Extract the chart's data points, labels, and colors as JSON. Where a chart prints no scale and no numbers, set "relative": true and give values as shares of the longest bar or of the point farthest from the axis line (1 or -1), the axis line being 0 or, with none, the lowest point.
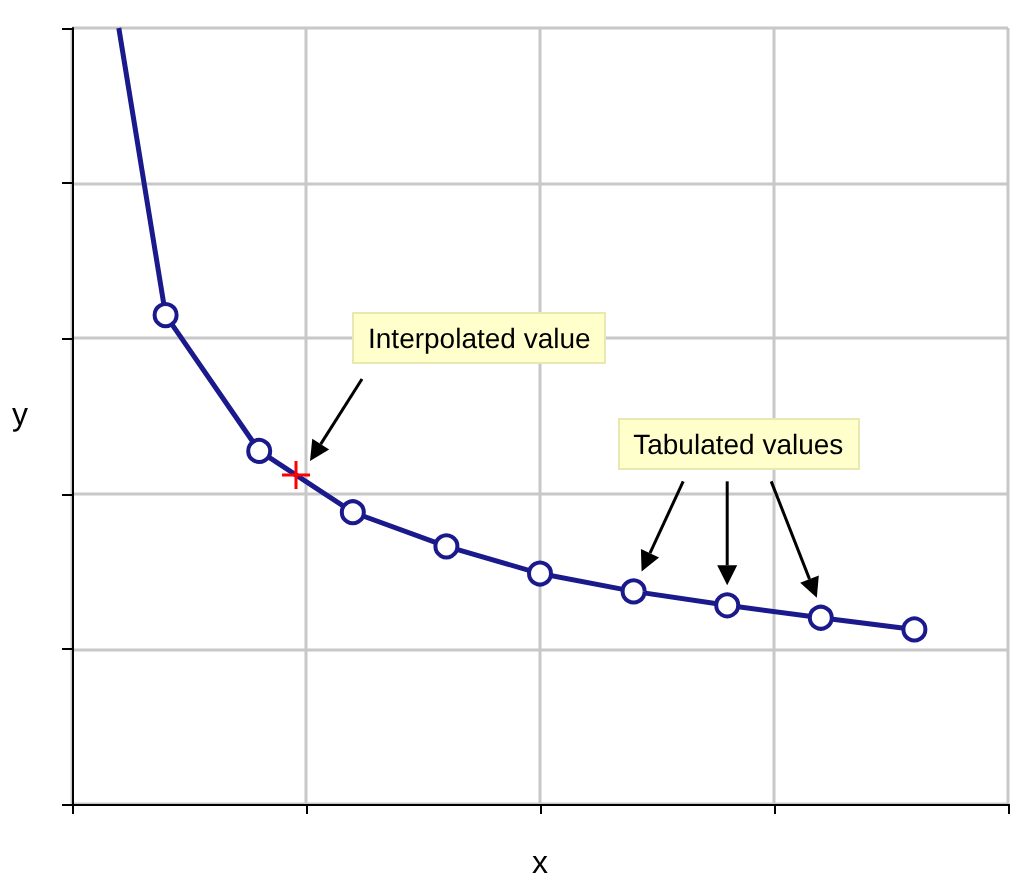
{
  "chart_data": {
    "type": "line",
    "xlabel": "x",
    "ylabel": "y",
    "relative": true,
    "grid": true,
    "tick_labels": false,
    "marker": "circle",
    "categories": [
      null,
      null,
      null,
      null,
      null,
      null,
      null,
      null,
      null,
      null,
      null,
      null,
      null,
      null,
      null,
      null,
      null,
      null,
      null,
      null,
      null
    ],
    "series": [
      {
        "color": "#1a1a8c",
        "values": [
          null,
          1,
          0.63,
          null,
          0.455,
          null,
          0.376,
          null,
          0.332,
          null,
          0.297,
          null,
          0.274,
          null,
          0.256,
          null,
          0.24,
          null,
          0.225,
          null,
          null
        ]
      }
    ],
    "annotations": [
      "Interpolated value",
      "Tabulated values"
    ]
  }
}
